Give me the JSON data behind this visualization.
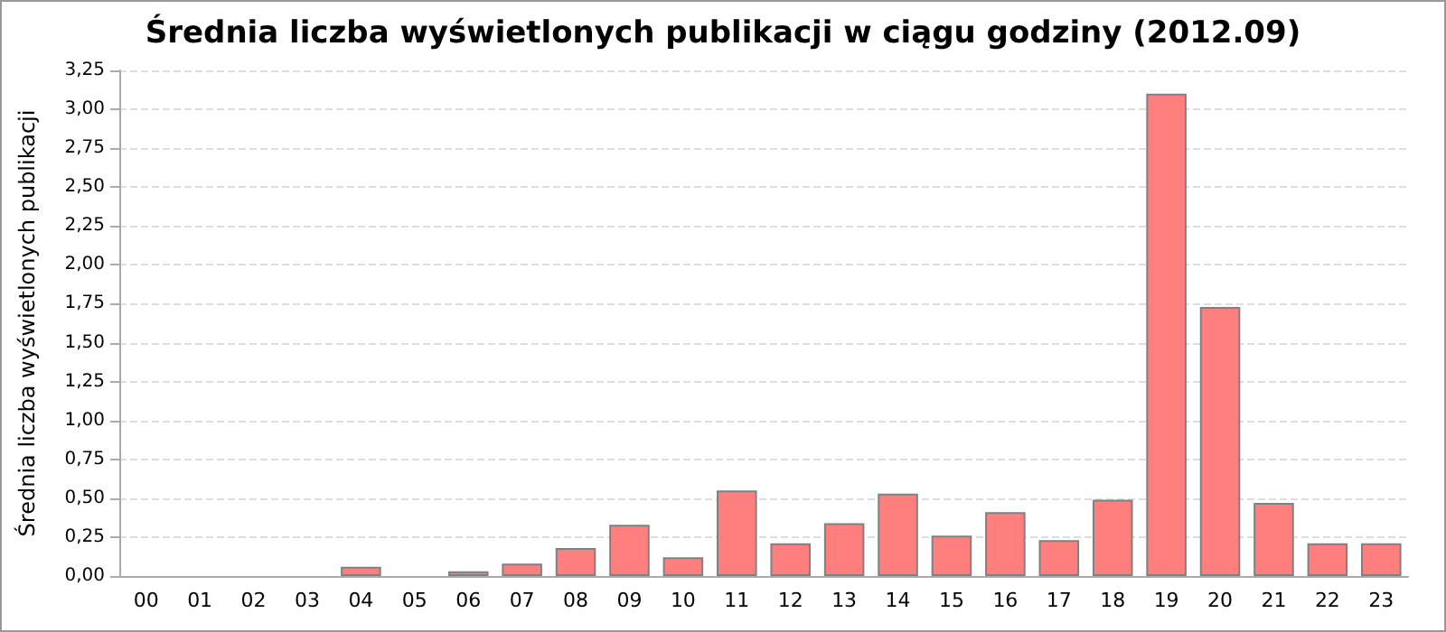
{
  "chart_data": {
    "type": "bar",
    "title": "Średnia liczba wyświetlonych publikacji w ciągu godziny (2012.09)",
    "ylabel": "Średnia liczba wyświetlonych publikacji",
    "categories": [
      "00",
      "01",
      "02",
      "03",
      "04",
      "05",
      "06",
      "07",
      "08",
      "09",
      "10",
      "11",
      "12",
      "13",
      "14",
      "15",
      "16",
      "17",
      "18",
      "19",
      "20",
      "21",
      "22",
      "23"
    ],
    "values": [
      0,
      0,
      0,
      0,
      0.06,
      0,
      0.03,
      0.08,
      0.18,
      0.33,
      0.12,
      0.55,
      0.21,
      0.34,
      0.53,
      0.26,
      0.41,
      0.23,
      0.49,
      3.1,
      1.73,
      0.47,
      0.21,
      0.21
    ],
    "color": "#ff7f7f",
    "ylim": [
      0,
      3.25
    ],
    "yticks": [
      {
        "value": 0,
        "label": "0,00"
      },
      {
        "value": 0.25,
        "label": "0,25"
      },
      {
        "value": 0.5,
        "label": "0,50"
      },
      {
        "value": 0.75,
        "label": "0,75"
      },
      {
        "value": 1,
        "label": "1,00"
      },
      {
        "value": 1.25,
        "label": "1,25"
      },
      {
        "value": 1.5,
        "label": "1,50"
      },
      {
        "value": 1.75,
        "label": "1,75"
      },
      {
        "value": 2,
        "label": "2,00"
      },
      {
        "value": 2.25,
        "label": "2,25"
      },
      {
        "value": 2.5,
        "label": "2,50"
      },
      {
        "value": 2.75,
        "label": "2,75"
      },
      {
        "value": 3,
        "label": "3,00"
      },
      {
        "value": 3.25,
        "label": "3,25"
      }
    ],
    "grid": "y"
  }
}
